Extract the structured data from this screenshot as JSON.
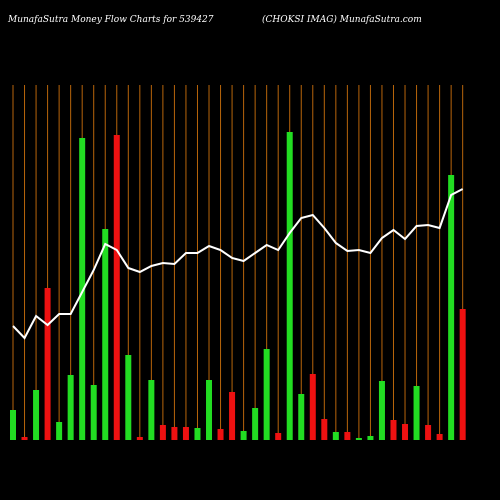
{
  "chart_data": {
    "type": "bar",
    "title": "MunafaSutra  Money Flow  Charts for 539427",
    "subtitle": "(CHOKSI IMAG) MunafaSutra.com",
    "categories": [
      null,
      null,
      null,
      null,
      null,
      null,
      null,
      null,
      null,
      null,
      null,
      null,
      null,
      null,
      null,
      null,
      null,
      null,
      null,
      null,
      null,
      null,
      null,
      null,
      null,
      null,
      null,
      null,
      null,
      null,
      null,
      null,
      null,
      null,
      null,
      null,
      null,
      null,
      null,
      null
    ],
    "values": [
      30,
      3,
      50,
      152,
      18,
      65,
      302,
      55,
      211,
      305,
      85,
      3,
      60,
      15,
      13,
      13,
      12,
      60,
      11,
      48,
      9,
      32,
      91,
      7,
      308,
      46,
      66,
      21,
      8,
      8,
      2,
      4,
      59,
      20,
      16,
      54,
      15,
      6,
      265,
      131
    ],
    "colors": [
      "#22dd22",
      "#ee1111",
      "#22dd22",
      "#ee1111",
      "#22dd22",
      "#22dd22",
      "#22dd22",
      "#22dd22",
      "#22dd22",
      "#ee1111",
      "#22dd22",
      "#ee1111",
      "#22dd22",
      "#ee1111",
      "#ee1111",
      "#ee1111",
      "#22dd22",
      "#22dd22",
      "#ee1111",
      "#ee1111",
      "#22dd22",
      "#22dd22",
      "#22dd22",
      "#ee1111",
      "#22dd22",
      "#22dd22",
      "#ee1111",
      "#ee1111",
      "#22dd22",
      "#ee1111",
      "#22dd22",
      "#22dd22",
      "#22dd22",
      "#ee1111",
      "#ee1111",
      "#22dd22",
      "#ee1111",
      "#ee1111",
      "#22dd22",
      "#ee1111"
    ],
    "line": {
      "color": "#ffffff",
      "values": [
        114,
        102,
        124,
        115,
        126,
        126,
        148,
        170,
        196,
        190,
        172,
        168,
        174,
        177,
        176,
        187,
        187,
        194,
        190,
        182,
        179,
        187,
        195,
        190,
        207,
        222,
        225,
        212,
        197,
        189,
        190,
        187,
        202,
        210,
        201,
        214,
        215,
        212,
        245,
        251
      ]
    },
    "ylim": [
      0,
      360
    ],
    "grid_color": "#b8650b"
  }
}
